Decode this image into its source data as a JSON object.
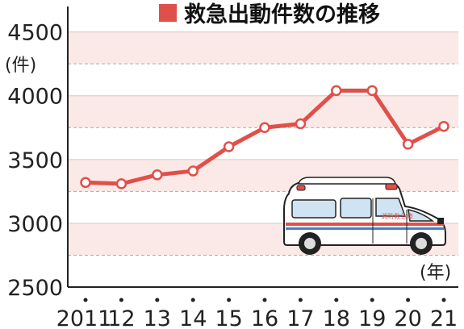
{
  "chart_data": {
    "type": "line",
    "title": "救急出動件数の推移",
    "ylabel": "(件)",
    "xlabel": "(年)",
    "categories": [
      "2011",
      "12",
      "13",
      "14",
      "15",
      "16",
      "17",
      "18",
      "19",
      "20",
      "21"
    ],
    "x": [
      2011,
      2012,
      2013,
      2014,
      2015,
      2016,
      2017,
      2018,
      2019,
      2020,
      2021
    ],
    "values": [
      3320,
      3310,
      3380,
      3410,
      3600,
      3750,
      3780,
      4040,
      4040,
      3620,
      3760
    ],
    "ylim": [
      2500,
      4700
    ],
    "yticks": [
      2500,
      3000,
      3500,
      4000,
      4500
    ],
    "ytick_labels": [
      "2500",
      "3000",
      "3500",
      "4000",
      "4500"
    ],
    "grid": true,
    "legend": "none",
    "colors": {
      "line": "#e0504a",
      "marker_fill": "#ffffff",
      "band": "#fbe9e7",
      "grid_dash": "#aaaaaa",
      "axis": "#222222",
      "title_square": "#e0504a"
    },
    "illustration": {
      "icon": "ambulance-icon",
      "vehicle_text": "消防救急車"
    }
  }
}
